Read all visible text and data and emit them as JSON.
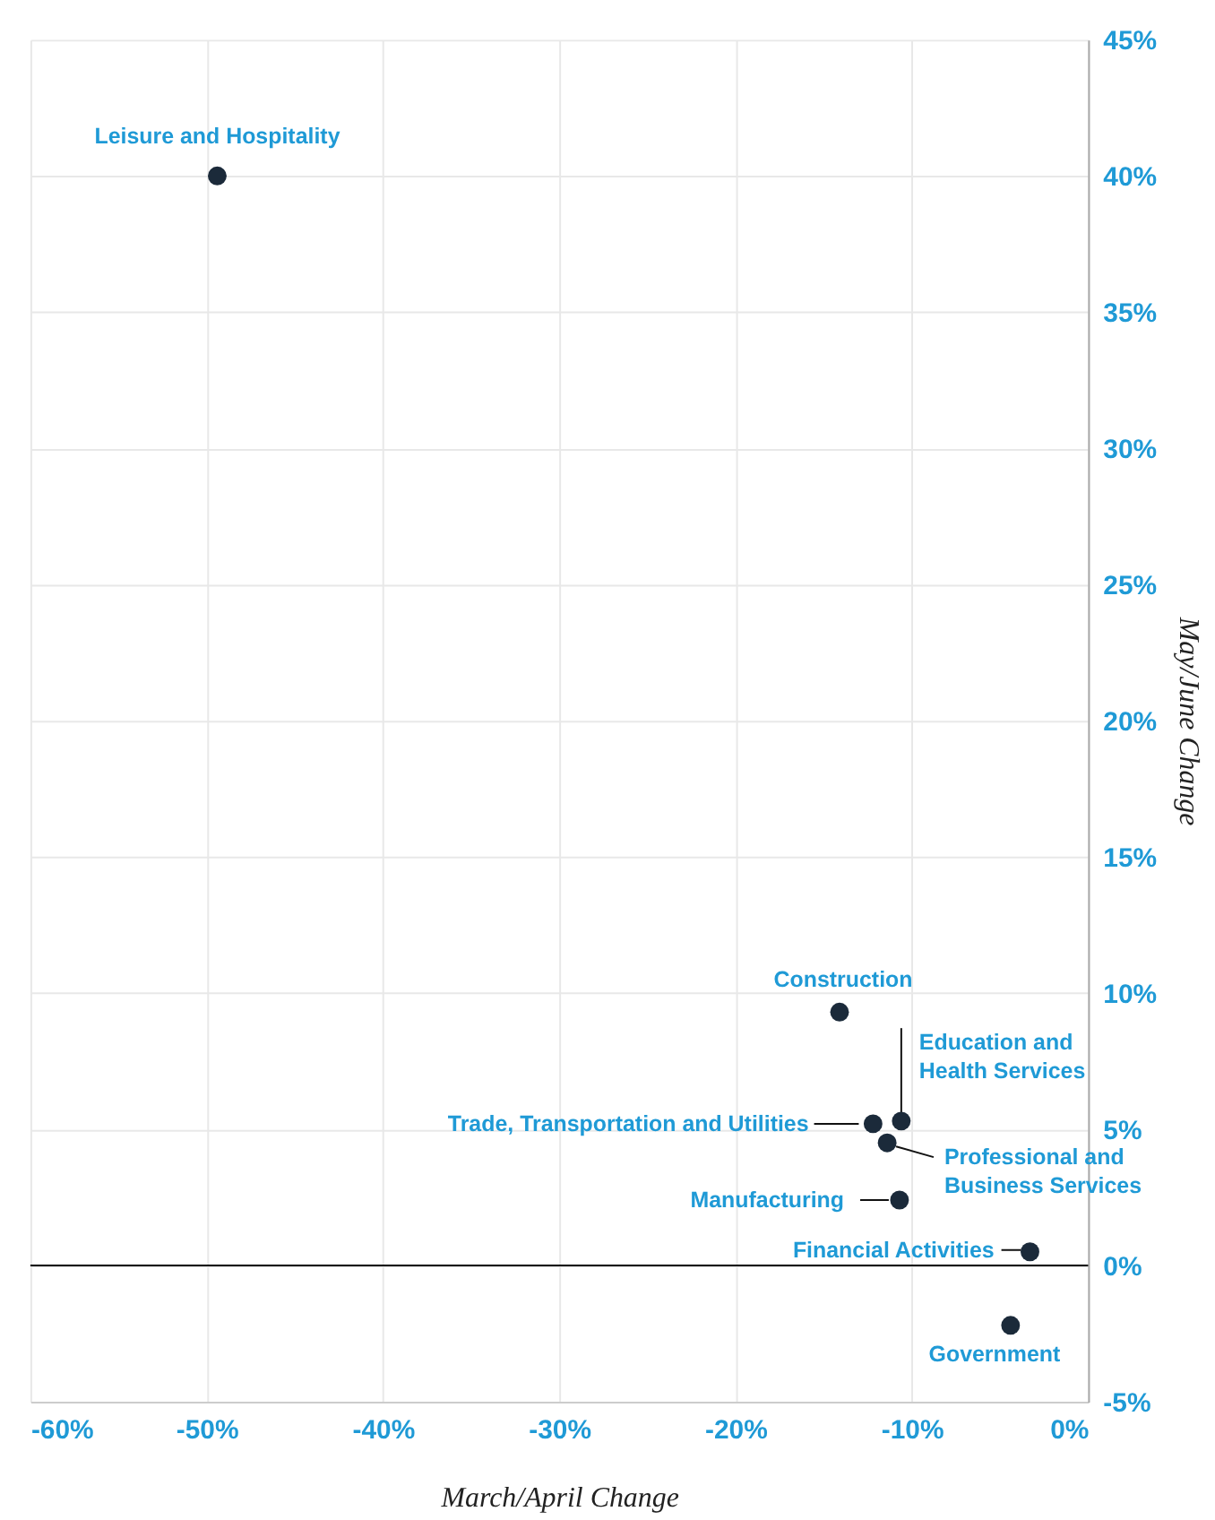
{
  "chart_data": {
    "type": "scatter",
    "x": [
      -49.4,
      -14.1,
      -10.6,
      -12.2,
      -11.4,
      -10.7,
      -3.3,
      -4.4
    ],
    "series": [
      {
        "color": "#1b2a3a",
        "values": [
          40.0,
          9.3,
          5.3,
          5.2,
          4.5,
          2.4,
          0.5,
          -2.2
        ]
      }
    ],
    "marker": "circle",
    "xlabel": "March/April Change",
    "ylabel": "May/June Change",
    "xlim": [
      -60,
      0
    ],
    "xticks": [
      {
        "value": -60,
        "label": "-60%"
      },
      {
        "value": -50,
        "label": "-50%"
      },
      {
        "value": -40,
        "label": "-40%"
      },
      {
        "value": -30,
        "label": "-30%"
      },
      {
        "value": -20,
        "label": "-20%"
      },
      {
        "value": -10,
        "label": "-10%"
      },
      {
        "value": 0,
        "label": "0%"
      }
    ],
    "ylim": [
      -5,
      45
    ],
    "yticks": [
      {
        "value": -5,
        "label": "-5%"
      },
      {
        "value": 0,
        "label": "0%"
      },
      {
        "value": 5,
        "label": "5%"
      },
      {
        "value": 10,
        "label": "10%"
      },
      {
        "value": 15,
        "label": "15%"
      },
      {
        "value": 20,
        "label": "20%"
      },
      {
        "value": 25,
        "label": "25%"
      },
      {
        "value": 30,
        "label": "30%"
      },
      {
        "value": 35,
        "label": "35%"
      },
      {
        "value": 40,
        "label": "40%"
      },
      {
        "value": 45,
        "label": "45%"
      }
    ],
    "grid": true,
    "ref_lines": [
      {
        "axis": "y",
        "value": 0,
        "color": "#000000"
      }
    ],
    "annotations": [
      {
        "text": "Leisure and Hospitality",
        "x": -49.4,
        "y": 40.0
      },
      {
        "text": "Construction",
        "x": -14.1,
        "y": 9.3
      },
      {
        "text": "Education and\nHealth Services",
        "x": -10.6,
        "y": 5.3
      },
      {
        "text": "Trade, Transportation and Utilities",
        "x": -12.2,
        "y": 5.2
      },
      {
        "text": "Professional and\nBusiness Services",
        "x": -11.4,
        "y": 4.5
      },
      {
        "text": "Manufacturing",
        "x": -10.7,
        "y": 2.4
      },
      {
        "text": "Financial Activities",
        "x": -3.3,
        "y": 0.5
      },
      {
        "text": "Government",
        "x": -4.4,
        "y": -2.2
      }
    ]
  }
}
